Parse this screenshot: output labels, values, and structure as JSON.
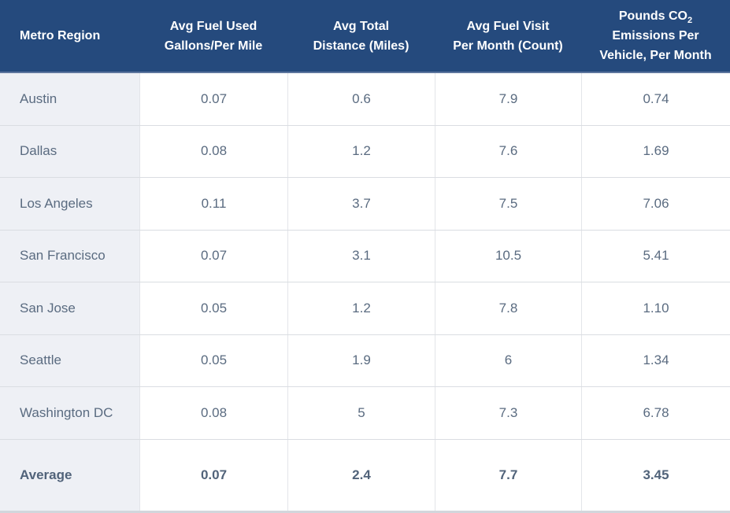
{
  "table": {
    "columns": [
      {
        "id": "region",
        "label": "Metro Region"
      },
      {
        "id": "fuel_used",
        "label": "Avg Fuel Used\nGallons/Per Mile"
      },
      {
        "id": "distance",
        "label": "Avg Total\nDistance (Miles)"
      },
      {
        "id": "fuel_visits",
        "label": "Avg Fuel Visit\nPer Month (Count)"
      },
      {
        "id": "co2",
        "label_pre_sub": "Pounds CO",
        "label_sub": "2",
        "label_rest": "\nEmissions Per\nVehicle, Per Month"
      }
    ],
    "rows": [
      {
        "region": "Austin",
        "fuel_used": "0.07",
        "distance": "0.6",
        "fuel_visits": "7.9",
        "co2": "0.74"
      },
      {
        "region": "Dallas",
        "fuel_used": "0.08",
        "distance": "1.2",
        "fuel_visits": "7.6",
        "co2": "1.69"
      },
      {
        "region": "Los Angeles",
        "fuel_used": "0.11",
        "distance": "3.7",
        "fuel_visits": "7.5",
        "co2": "7.06"
      },
      {
        "region": "San Francisco",
        "fuel_used": "0.07",
        "distance": "3.1",
        "fuel_visits": "10.5",
        "co2": "5.41"
      },
      {
        "region": "San Jose",
        "fuel_used": "0.05",
        "distance": "1.2",
        "fuel_visits": "7.8",
        "co2": "1.10"
      },
      {
        "region": "Seattle",
        "fuel_used": "0.05",
        "distance": "1.9",
        "fuel_visits": "6",
        "co2": "1.34"
      },
      {
        "region": "Washington DC",
        "fuel_used": "0.08",
        "distance": "5",
        "fuel_visits": "7.3",
        "co2": "6.78"
      }
    ],
    "summary": {
      "region": "Average",
      "fuel_used": "0.07",
      "distance": "2.4",
      "fuel_visits": "7.7",
      "co2": "3.45"
    }
  },
  "colors": {
    "header_bg": "#254a7d",
    "header_text": "#ffffff",
    "region_column_bg": "#eef0f5",
    "body_text": "#5a6b80",
    "row_border": "#dadde2"
  },
  "chart_data": {
    "type": "table",
    "columns": [
      "Metro Region",
      "Avg Fuel Used Gallons/Per Mile",
      "Avg Total Distance (Miles)",
      "Avg Fuel Visit Per Month (Count)",
      "Pounds CO₂ Emissions Per Vehicle, Per Month"
    ],
    "rows": [
      [
        "Austin",
        0.07,
        0.6,
        7.9,
        0.74
      ],
      [
        "Dallas",
        0.08,
        1.2,
        7.6,
        1.69
      ],
      [
        "Los Angeles",
        0.11,
        3.7,
        7.5,
        7.06
      ],
      [
        "San Francisco",
        0.07,
        3.1,
        10.5,
        5.41
      ],
      [
        "San Jose",
        0.05,
        1.2,
        7.8,
        1.1
      ],
      [
        "Seattle",
        0.05,
        1.9,
        6,
        1.34
      ],
      [
        "Washington DC",
        0.08,
        5,
        7.3,
        6.78
      ]
    ],
    "summary_row": [
      "Average",
      0.07,
      2.4,
      7.7,
      3.45
    ]
  }
}
